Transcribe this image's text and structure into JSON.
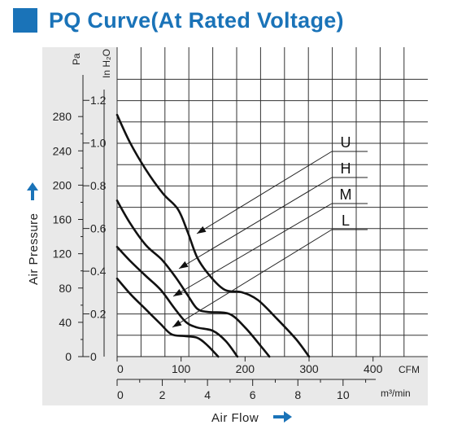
{
  "title": "PQ Curve(At Rated Voltage)",
  "colors": {
    "accent": "#1a73b8",
    "curve": "#111111",
    "grid": "#333333",
    "panel": "#e9e9e9"
  },
  "chart_data": {
    "type": "line",
    "title": "PQ Curve(At Rated Voltage)",
    "xlabel": "Air Flow",
    "ylabel": "Air Pressure",
    "grid": true,
    "x_unit_primary": "CFM",
    "x_unit_secondary": "m³/min",
    "y_unit_primary": "Pa",
    "y_unit_secondary": "In H₂O",
    "xlim": [
      0,
      450
    ],
    "ylim": [
      0,
      340
    ],
    "x_ticks_cfm": [
      "0",
      "100",
      "200",
      "300",
      "400"
    ],
    "x_ticks_m3min": [
      "0",
      "2",
      "4",
      "6",
      "8",
      "10"
    ],
    "y_ticks_pa": [
      "0",
      "40",
      "80",
      "120",
      "160",
      "200",
      "240",
      "280"
    ],
    "y_ticks_inh2o": [
      "0",
      "0.2",
      "0.4",
      "0.6",
      "0.8",
      "1.0",
      "1.2"
    ],
    "series": [
      {
        "name": "U",
        "points": [
          [
            0,
            282
          ],
          [
            20,
            250
          ],
          [
            45,
            218
          ],
          [
            72,
            190
          ],
          [
            95,
            172
          ],
          [
            110,
            146
          ],
          [
            125,
            116
          ],
          [
            143,
            96
          ],
          [
            168,
            78
          ],
          [
            195,
            75
          ],
          [
            220,
            66
          ],
          [
            250,
            44
          ],
          [
            280,
            20
          ],
          [
            300,
            0
          ]
        ]
      },
      {
        "name": "H",
        "points": [
          [
            0,
            182
          ],
          [
            20,
            156
          ],
          [
            45,
            130
          ],
          [
            70,
            113
          ],
          [
            92,
            92
          ],
          [
            110,
            72
          ],
          [
            125,
            56
          ],
          [
            142,
            52
          ],
          [
            175,
            50
          ],
          [
            200,
            34
          ],
          [
            225,
            12
          ],
          [
            238,
            0
          ]
        ]
      },
      {
        "name": "M",
        "points": [
          [
            0,
            128
          ],
          [
            20,
            112
          ],
          [
            45,
            94
          ],
          [
            68,
            78
          ],
          [
            90,
            56
          ],
          [
            108,
            40
          ],
          [
            125,
            34
          ],
          [
            150,
            30
          ],
          [
            170,
            18
          ],
          [
            188,
            0
          ]
        ]
      },
      {
        "name": "L",
        "points": [
          [
            0,
            91
          ],
          [
            22,
            72
          ],
          [
            45,
            55
          ],
          [
            68,
            38
          ],
          [
            85,
            26
          ],
          [
            105,
            24
          ],
          [
            125,
            22
          ],
          [
            140,
            14
          ],
          [
            158,
            0
          ]
        ]
      }
    ],
    "legend_placement": "right, with leader lines to curves"
  }
}
